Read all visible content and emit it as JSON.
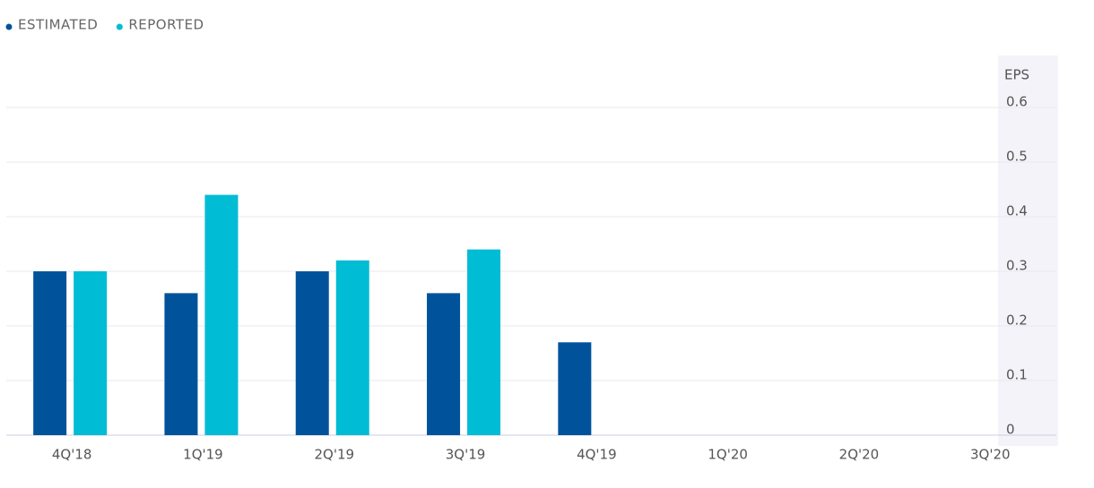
{
  "chart_data": {
    "type": "bar",
    "y_label": "EPS",
    "categories": [
      "4Q'18",
      "1Q'19",
      "2Q'19",
      "3Q'19",
      "4Q'19",
      "1Q'20",
      "2Q'20",
      "3Q'20"
    ],
    "series": [
      {
        "name": "ESTIMATED",
        "color": "#00539b",
        "values": [
          0.3,
          0.26,
          0.3,
          0.26,
          0.17,
          null,
          null,
          null
        ]
      },
      {
        "name": "REPORTED",
        "color": "#00bcd4",
        "values": [
          0.3,
          0.44,
          0.32,
          0.34,
          null,
          null,
          null,
          null
        ]
      }
    ],
    "ylim": [
      0,
      0.6
    ],
    "yticks": [
      0,
      0.1,
      0.2,
      0.3,
      0.4,
      0.5,
      0.6
    ],
    "grid": true
  }
}
